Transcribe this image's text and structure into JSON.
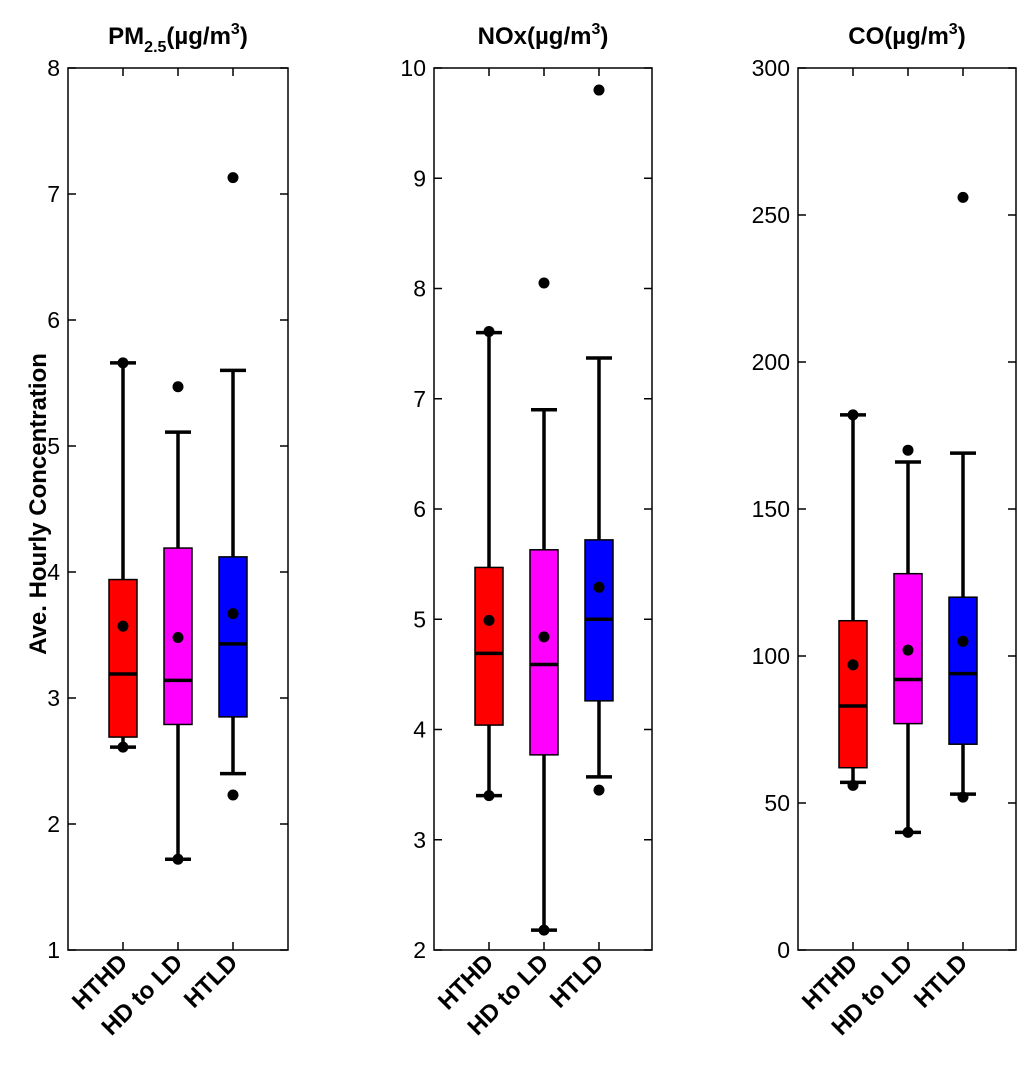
{
  "chart_data": [
    {
      "type": "box",
      "title": {
        "main": "PM",
        "sub": "2.5",
        "unit": "(µg/m",
        "sup": "3",
        "close": ")"
      },
      "ylabel": "Ave. Hourly Concentration",
      "ylim": [
        1,
        8
      ],
      "yticks": [
        1,
        2,
        3,
        4,
        5,
        6,
        7,
        8
      ],
      "categories": [
        "HTHD",
        "HD to LD",
        "HTLD"
      ],
      "boxes": [
        {
          "category": "HTHD",
          "color": "#ff0000",
          "q1": 2.69,
          "median": 3.19,
          "q3": 3.94,
          "whisker_low": 2.61,
          "whisker_high": 5.66,
          "mean": 3.57,
          "outliers": [
            2.61,
            5.66
          ]
        },
        {
          "category": "HD to LD",
          "color": "#ff00ff",
          "q1": 2.79,
          "median": 3.14,
          "q3": 4.19,
          "whisker_low": 1.72,
          "whisker_high": 5.11,
          "mean": 3.48,
          "outliers": [
            1.72,
            5.47
          ]
        },
        {
          "category": "HTLD",
          "color": "#0000ff",
          "q1": 2.85,
          "median": 3.43,
          "q3": 4.12,
          "whisker_low": 2.4,
          "whisker_high": 5.6,
          "mean": 3.67,
          "outliers": [
            2.23,
            7.13
          ]
        }
      ]
    },
    {
      "type": "box",
      "title": {
        "main": "NOx",
        "sub": "",
        "unit": "(µg/m",
        "sup": "3",
        "close": ")"
      },
      "ylabel": "",
      "ylim": [
        2,
        10
      ],
      "yticks": [
        2,
        3,
        4,
        5,
        6,
        7,
        8,
        9,
        10
      ],
      "categories": [
        "HTHD",
        "HD to LD",
        "HTLD"
      ],
      "boxes": [
        {
          "category": "HTHD",
          "color": "#ff0000",
          "q1": 4.04,
          "median": 4.69,
          "q3": 5.47,
          "whisker_low": 3.4,
          "whisker_high": 7.6,
          "mean": 4.99,
          "outliers": [
            3.4,
            7.61
          ]
        },
        {
          "category": "HD to LD",
          "color": "#ff00ff",
          "q1": 3.77,
          "median": 4.59,
          "q3": 5.63,
          "whisker_low": 2.18,
          "whisker_high": 6.9,
          "mean": 4.84,
          "outliers": [
            2.18,
            8.05
          ]
        },
        {
          "category": "HTLD",
          "color": "#0000ff",
          "q1": 4.26,
          "median": 5.0,
          "q3": 5.72,
          "whisker_low": 3.57,
          "whisker_high": 7.37,
          "mean": 5.29,
          "outliers": [
            3.45,
            9.8
          ]
        }
      ]
    },
    {
      "type": "box",
      "title": {
        "main": "CO",
        "sub": "",
        "unit": "(µg/m",
        "sup": "3",
        "close": ")"
      },
      "ylabel": "",
      "ylim": [
        0,
        300
      ],
      "yticks": [
        0,
        50,
        100,
        150,
        200,
        250,
        300
      ],
      "categories": [
        "HTHD",
        "HD to LD",
        "HTLD"
      ],
      "boxes": [
        {
          "category": "HTHD",
          "color": "#ff0000",
          "q1": 62,
          "median": 83,
          "q3": 112,
          "whisker_low": 57,
          "whisker_high": 182,
          "mean": 97,
          "outliers": [
            56,
            182
          ]
        },
        {
          "category": "HD to LD",
          "color": "#ff00ff",
          "q1": 77,
          "median": 92,
          "q3": 128,
          "whisker_low": 40,
          "whisker_high": 166,
          "mean": 102,
          "outliers": [
            40,
            170
          ]
        },
        {
          "category": "HTLD",
          "color": "#0000ff",
          "q1": 70,
          "median": 94,
          "q3": 120,
          "whisker_low": 53,
          "whisker_high": 169,
          "mean": 105,
          "outliers": [
            52,
            256
          ]
        }
      ]
    }
  ]
}
